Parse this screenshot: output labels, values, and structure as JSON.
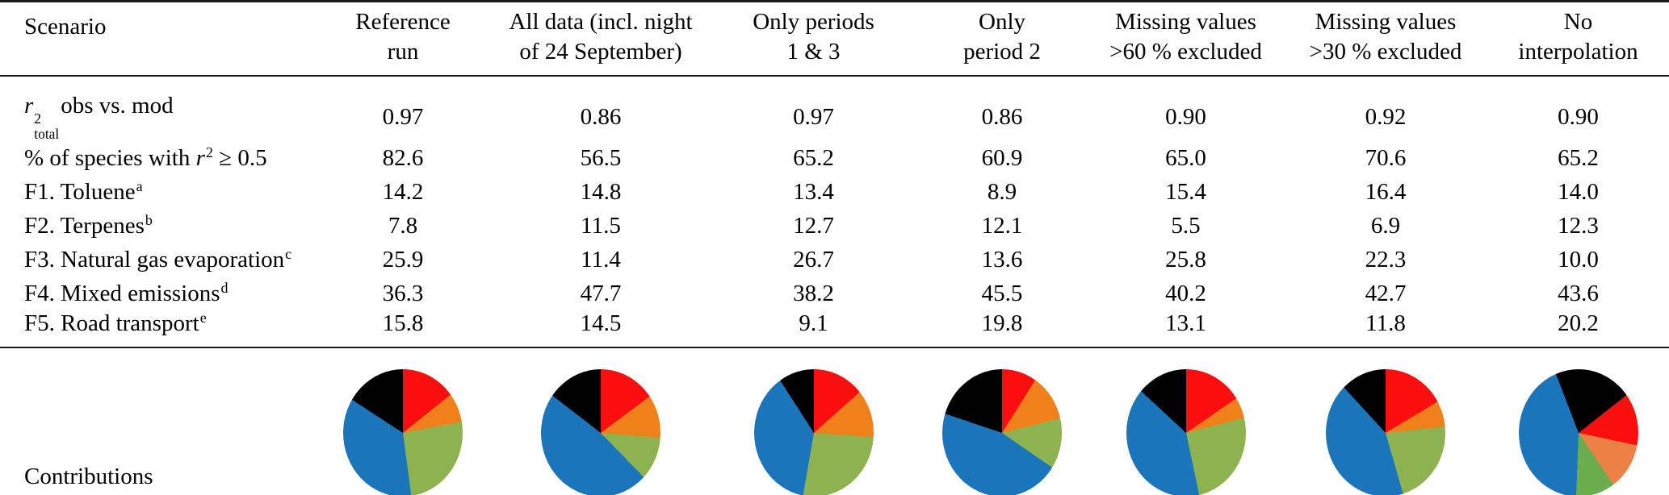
{
  "table": {
    "header": {
      "scenario_label": "Scenario",
      "columns": [
        {
          "lines": [
            "Reference",
            "run"
          ]
        },
        {
          "lines": [
            "All data (incl. night",
            "of 24 September)"
          ]
        },
        {
          "lines": [
            "Only periods",
            "1 & 3"
          ]
        },
        {
          "lines": [
            "Only",
            "period 2"
          ]
        },
        {
          "lines": [
            "Missing values",
            ">60 % excluded"
          ]
        },
        {
          "lines": [
            "Missing values",
            ">30 % excluded"
          ]
        },
        {
          "lines": [
            "No",
            "interpolation"
          ]
        }
      ]
    },
    "rows": [
      {
        "id": "r2-total-obs-vs-mod",
        "label_parts": [
          {
            "t": "i",
            "v": "r"
          },
          {
            "t": "supsub",
            "sup": "2",
            "sub": "total"
          },
          {
            "t": "text",
            "v": "obs vs. mod"
          }
        ],
        "values": [
          "0.97",
          "0.86",
          "0.97",
          "0.86",
          "0.90",
          "0.92",
          "0.90"
        ]
      },
      {
        "id": "pct-species-r2-ge-0.5",
        "label_parts": [
          {
            "t": "text",
            "v": "% of species with "
          },
          {
            "t": "i",
            "v": "r"
          },
          {
            "t": "sup",
            "v": "2"
          },
          {
            "t": "text",
            "v": " ≥ 0.5"
          }
        ],
        "values": [
          "82.6",
          "56.5",
          "65.2",
          "60.9",
          "65.0",
          "70.6",
          "65.2"
        ]
      },
      {
        "id": "f1-toluene",
        "label_parts": [
          {
            "t": "text",
            "v": "F1. Toluene"
          },
          {
            "t": "sup",
            "v": "a"
          }
        ],
        "values": [
          "14.2",
          "14.8",
          "13.4",
          "8.9",
          "15.4",
          "16.4",
          "14.0"
        ]
      },
      {
        "id": "f2-terpenes",
        "label_parts": [
          {
            "t": "text",
            "v": "F2. Terpenes"
          },
          {
            "t": "sup",
            "v": "b"
          }
        ],
        "values": [
          "7.8",
          "11.5",
          "12.7",
          "12.1",
          "5.5",
          "6.9",
          "12.3"
        ]
      },
      {
        "id": "f3-natural-gas-evaporation",
        "label_parts": [
          {
            "t": "text",
            "v": "F3. Natural gas evaporation"
          },
          {
            "t": "sup",
            "v": "c"
          }
        ],
        "values": [
          "25.9",
          "11.4",
          "26.7",
          "13.6",
          "25.8",
          "22.3",
          "10.0"
        ]
      },
      {
        "id": "f4-mixed-emissions",
        "label_parts": [
          {
            "t": "text",
            "v": "F4. Mixed emissions"
          },
          {
            "t": "sup",
            "v": "d"
          }
        ],
        "values": [
          "36.3",
          "47.7",
          "38.2",
          "45.5",
          "40.2",
          "42.7",
          "43.6"
        ]
      },
      {
        "id": "f5-road-transport",
        "label_parts": [
          {
            "t": "text",
            "v": "F5. Road transport"
          },
          {
            "t": "sup",
            "v": "e"
          }
        ],
        "values": [
          "15.8",
          "14.5",
          "9.1",
          "19.8",
          "13.1",
          "11.8",
          "20.2"
        ]
      }
    ],
    "footer_label": "Contributions"
  },
  "chart_data": {
    "type": "pie",
    "title": "Contributions",
    "legend_position": "none",
    "factors": [
      "F1. Toluene",
      "F2. Terpenes",
      "F3. Natural gas evaporation",
      "F4. Mixed emissions",
      "F5. Road transport"
    ],
    "colors": {
      "F1": "#fa0f0e",
      "F2": "#f0801a",
      "F3": "#8db351",
      "F4": "#1b75bb",
      "F5": "#000000"
    },
    "pies": [
      {
        "scenario": "Reference run",
        "values": {
          "F1": 14.2,
          "F2": 7.8,
          "F3": 25.9,
          "F4": 36.3,
          "F5": 15.8
        },
        "order": [
          "F1",
          "F2",
          "F3",
          "F4",
          "F5"
        ],
        "start_deg": 0
      },
      {
        "scenario": "All data (incl. night of 24 September)",
        "values": {
          "F1": 14.8,
          "F2": 11.5,
          "F3": 11.4,
          "F4": 47.7,
          "F5": 14.5
        },
        "order": [
          "F1",
          "F2",
          "F3",
          "F4",
          "F5"
        ],
        "start_deg": 0
      },
      {
        "scenario": "Only periods 1 & 3",
        "values": {
          "F1": 13.4,
          "F2": 12.7,
          "F3": 26.7,
          "F4": 38.2,
          "F5": 9.1
        },
        "order": [
          "F1",
          "F2",
          "F3",
          "F4",
          "F5"
        ],
        "start_deg": 0
      },
      {
        "scenario": "Only period 2",
        "values": {
          "F1": 8.9,
          "F2": 12.1,
          "F3": 13.6,
          "F4": 45.5,
          "F5": 19.8
        },
        "order": [
          "F1",
          "F2",
          "F3",
          "F4",
          "F5"
        ],
        "start_deg": 0
      },
      {
        "scenario": "Missing values >60 % excluded",
        "values": {
          "F1": 15.4,
          "F2": 5.5,
          "F3": 25.8,
          "F4": 40.2,
          "F5": 13.1
        },
        "order": [
          "F1",
          "F2",
          "F3",
          "F4",
          "F5"
        ],
        "start_deg": 0
      },
      {
        "scenario": "Missing values >30 % excluded",
        "values": {
          "F1": 16.4,
          "F2": 6.9,
          "F3": 22.3,
          "F4": 42.7,
          "F5": 11.8
        },
        "order": [
          "F1",
          "F2",
          "F3",
          "F4",
          "F5"
        ],
        "start_deg": 0
      },
      {
        "scenario": "No interpolation",
        "values": {
          "F1": 14.0,
          "F2": 12.3,
          "F3": 10.0,
          "F4": 43.6,
          "F5": 20.2
        },
        "order": [
          "F5",
          "F1",
          "F2",
          "F3",
          "F4"
        ],
        "start_deg": -21,
        "color_overrides": {
          "F2": "#ec8146",
          "F3": "#69ad4d"
        }
      }
    ]
  }
}
